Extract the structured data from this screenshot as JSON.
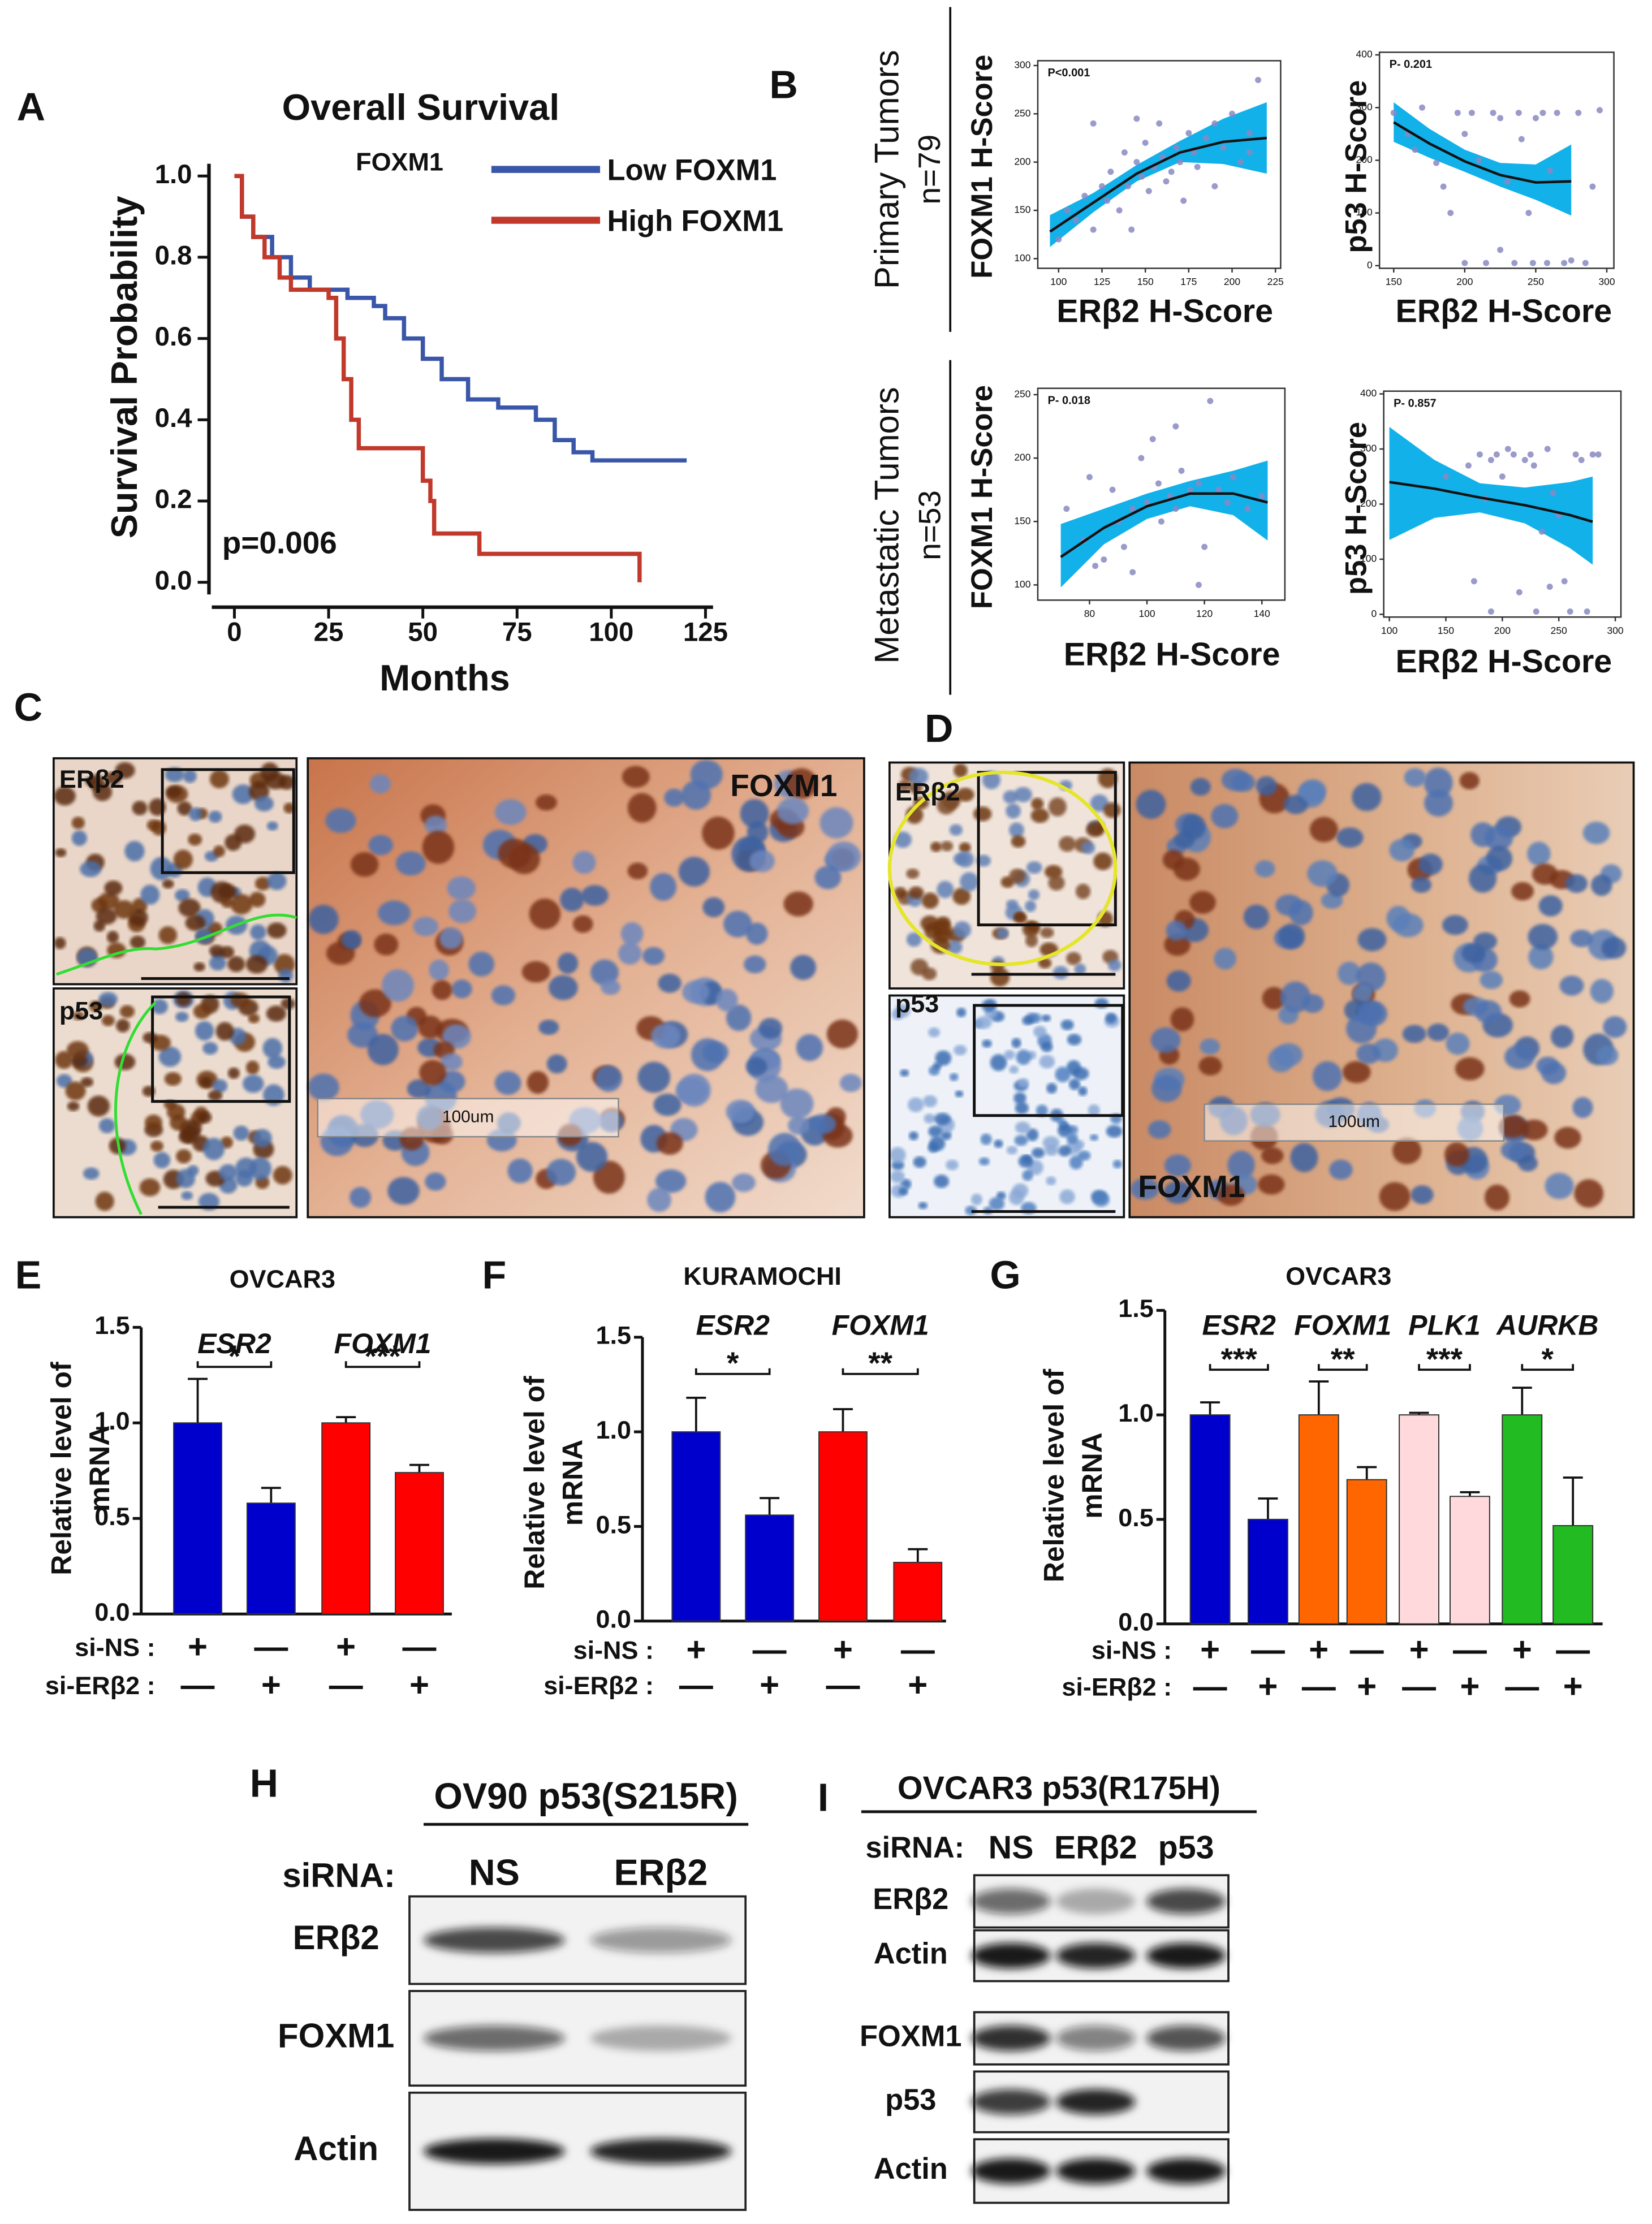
{
  "panel_labels": [
    "A",
    "B",
    "C",
    "D",
    "E",
    "F",
    "G",
    "H",
    "I"
  ],
  "tumor_groups": [
    {
      "name": "Primary Tumors",
      "n": "n=79"
    },
    {
      "name": "Metastatic Tumors",
      "n": "n=53"
    }
  ],
  "chart_data": [
    {
      "type": "line",
      "step": true,
      "title": "Overall Survival",
      "subtitle": "FOXM1",
      "x_label": "Months",
      "y_label": "Survival Probability",
      "annotation": "p=0.006",
      "xlim": [
        -6,
        127
      ],
      "ylim": [
        -0.03,
        1.03
      ],
      "xticks": [
        0,
        25,
        50,
        75,
        100,
        125
      ],
      "yticks": [
        {
          "value": 0,
          "label": "0.0"
        },
        0.2,
        0.4,
        0.6,
        0.8,
        {
          "value": 1,
          "label": "1.0"
        }
      ],
      "series": [
        {
          "name": "Low FOXM1",
          "color": "#3a56a8",
          "x": [
            0,
            2,
            5,
            10,
            15,
            20,
            30,
            37,
            40,
            45,
            50,
            55,
            62,
            70,
            80,
            85,
            90,
            95,
            120
          ],
          "values": [
            1.0,
            0.9,
            0.85,
            0.8,
            0.75,
            0.72,
            0.7,
            0.68,
            0.65,
            0.6,
            0.55,
            0.5,
            0.45,
            0.43,
            0.4,
            0.35,
            0.32,
            0.3,
            0.3
          ]
        },
        {
          "name": "High FOXM1",
          "color": "#c0392b",
          "x": [
            0,
            2,
            5,
            8,
            12,
            15,
            25,
            27,
            29,
            31,
            33,
            50,
            52,
            53,
            65,
            107,
            107.5
          ],
          "values": [
            1.0,
            0.9,
            0.85,
            0.8,
            0.75,
            0.72,
            0.7,
            0.6,
            0.5,
            0.4,
            0.33,
            0.25,
            0.2,
            0.12,
            0.07,
            0.07,
            0.0
          ]
        }
      ]
    },
    {
      "type": "scatter",
      "annotation": "P<0.001",
      "x_label": "ERβ2 H-Score",
      "y_label": "FOXM1 H-Score",
      "xlim": [
        88,
        228
      ],
      "ylim": [
        90,
        305
      ],
      "xticks": [
        100,
        125,
        150,
        175,
        200,
        225
      ],
      "yticks": [
        100,
        150,
        200,
        250,
        300
      ],
      "points": {
        "color": "#8a8ac2",
        "x": [
          100,
          105,
          110,
          115,
          120,
          125,
          128,
          130,
          135,
          138,
          140,
          142,
          145,
          148,
          150,
          152,
          155,
          158,
          160,
          162,
          165,
          168,
          170,
          172,
          175,
          178,
          180,
          185,
          190,
          195,
          200,
          205,
          210,
          215,
          120,
          145,
          190,
          210
        ],
        "values": [
          120,
          150,
          140,
          165,
          130,
          175,
          160,
          190,
          150,
          210,
          175,
          130,
          200,
          185,
          220,
          170,
          195,
          240,
          205,
          180,
          190,
          215,
          200,
          160,
          230,
          210,
          195,
          225,
          240,
          215,
          250,
          200,
          230,
          285,
          240,
          245,
          175,
          210
        ]
      },
      "fit": {
        "color": "#111111",
        "band_color": "#12b1ea",
        "x": [
          95,
          120,
          145,
          170,
          195,
          220
        ],
        "values": [
          128,
          158,
          188,
          210,
          221,
          225
        ],
        "lower": [
          112,
          148,
          180,
          200,
          198,
          188
        ],
        "upper": [
          145,
          168,
          197,
          222,
          245,
          262
        ]
      }
    },
    {
      "type": "scatter",
      "annotation": "P- 0.201",
      "x_label": "ERβ2 H-Score",
      "y_label": "p53 H-Score",
      "xlim": [
        140,
        305
      ],
      "ylim": [
        -5,
        405
      ],
      "xticks": [
        150,
        200,
        250,
        300
      ],
      "yticks": [
        0,
        100,
        200,
        300,
        400
      ],
      "points": {
        "color": "#8a8ac2",
        "x": [
          150,
          160,
          165,
          170,
          180,
          185,
          190,
          195,
          200,
          205,
          210,
          215,
          220,
          225,
          230,
          235,
          238,
          240,
          245,
          248,
          250,
          255,
          258,
          260,
          265,
          270,
          275,
          280,
          285,
          290,
          295,
          200,
          225
        ],
        "values": [
          290,
          250,
          220,
          300,
          195,
          150,
          100,
          290,
          250,
          290,
          200,
          5,
          290,
          280,
          160,
          5,
          290,
          240,
          100,
          5,
          280,
          290,
          5,
          180,
          290,
          5,
          10,
          290,
          5,
          150,
          295,
          5,
          30
        ]
      },
      "fit": {
        "color": "#111111",
        "band_color": "#12b1ea",
        "x": [
          150,
          175,
          200,
          225,
          250,
          275
        ],
        "values": [
          272,
          232,
          198,
          172,
          158,
          160
        ],
        "lower": [
          235,
          205,
          178,
          150,
          125,
          95
        ],
        "upper": [
          310,
          260,
          220,
          195,
          192,
          230
        ]
      }
    },
    {
      "type": "scatter",
      "annotation": "P- 0.018",
      "x_label": "ERβ2 H-Score",
      "y_label": "FOXM1 H-Score",
      "xlim": [
        62,
        148
      ],
      "ylim": [
        88,
        255
      ],
      "xticks": [
        80,
        100,
        120,
        140
      ],
      "yticks": [
        100,
        150,
        200,
        250
      ],
      "points": {
        "color": "#8a8ac2",
        "x": [
          72,
          78,
          80,
          82,
          85,
          88,
          90,
          92,
          95,
          98,
          100,
          102,
          104,
          105,
          108,
          110,
          112,
          115,
          118,
          120,
          122,
          125,
          128,
          130,
          135,
          140,
          95,
          110,
          118
        ],
        "values": [
          160,
          135,
          185,
          115,
          120,
          175,
          150,
          130,
          110,
          200,
          165,
          215,
          180,
          150,
          170,
          160,
          190,
          175,
          180,
          130,
          245,
          175,
          165,
          185,
          160,
          170,
          160,
          225,
          100
        ]
      },
      "fit": {
        "color": "#111111",
        "band_color": "#12b1ea",
        "x": [
          70,
          85,
          100,
          115,
          130,
          142
        ],
        "values": [
          122,
          145,
          162,
          172,
          172,
          165
        ],
        "lower": [
          98,
          132,
          152,
          162,
          155,
          135
        ],
        "upper": [
          148,
          160,
          172,
          182,
          190,
          198
        ]
      }
    },
    {
      "type": "scatter",
      "annotation": "P- 0.857",
      "x_label": "ERβ2 H-Score",
      "y_label": "p53 H-Score",
      "xlim": [
        95,
        305
      ],
      "ylim": [
        -5,
        405
      ],
      "xticks": [
        100,
        150,
        200,
        250,
        300
      ],
      "yticks": [
        0,
        100,
        200,
        300,
        400
      ],
      "points": {
        "color": "#8a8ac2",
        "x": [
          150,
          170,
          180,
          185,
          190,
          195,
          200,
          205,
          210,
          215,
          220,
          225,
          228,
          230,
          235,
          240,
          242,
          245,
          250,
          255,
          260,
          265,
          270,
          275,
          280,
          285,
          190,
          175
        ],
        "values": [
          250,
          270,
          290,
          210,
          280,
          290,
          250,
          300,
          290,
          40,
          280,
          290,
          270,
          5,
          150,
          300,
          50,
          220,
          180,
          60,
          5,
          290,
          280,
          5,
          290,
          290,
          5,
          60
        ]
      },
      "fit": {
        "color": "#111111",
        "band_color": "#12b1ea",
        "x": [
          100,
          140,
          180,
          220,
          260,
          280
        ],
        "values": [
          240,
          228,
          212,
          198,
          180,
          168
        ],
        "lower": [
          135,
          175,
          185,
          165,
          120,
          90
        ],
        "upper": [
          340,
          280,
          238,
          230,
          240,
          250
        ]
      }
    },
    {
      "type": "bar",
      "title": "OVCAR3",
      "y_label": [
        "Relative level of",
        "mRNA"
      ],
      "ylim": [
        0,
        1.5
      ],
      "yticks": [
        {
          "value": 0,
          "label": "0.0"
        },
        0.5,
        {
          "value": 1,
          "label": "1.0"
        },
        1.5
      ],
      "categories": [
        null,
        null,
        null,
        null
      ],
      "values": [
        1.0,
        0.58,
        1.0,
        0.74
      ],
      "errors": [
        0.23,
        0.08,
        0.03,
        0.04
      ],
      "colors": [
        "#0000cc",
        "#0000cc",
        "#ff0000",
        "#ff0000"
      ],
      "genes": [
        {
          "name": "ESR2",
          "significance": "*"
        },
        {
          "name": "FOXM1",
          "significance": "***"
        }
      ],
      "conditions": [
        {
          "name": "si-NS :",
          "marks": [
            "+",
            "—",
            "+",
            "—"
          ]
        },
        {
          "name": "si-ERβ2 :",
          "marks": [
            "—",
            "+",
            "—",
            "+"
          ]
        }
      ]
    },
    {
      "type": "bar",
      "title": "KURAMOCHI",
      "y_label": [
        "Relative level of",
        "mRNA"
      ],
      "ylim": [
        0,
        1.5
      ],
      "yticks": [
        {
          "value": 0,
          "label": "0.0"
        },
        0.5,
        {
          "value": 1,
          "label": "1.0"
        },
        1.5
      ],
      "categories": [
        null,
        null,
        null,
        null
      ],
      "values": [
        1.0,
        0.56,
        1.0,
        0.31
      ],
      "errors": [
        0.18,
        0.09,
        0.12,
        0.07
      ],
      "colors": [
        "#0000cc",
        "#0000cc",
        "#ff0000",
        "#ff0000"
      ],
      "genes": [
        {
          "name": "ESR2",
          "significance": "*"
        },
        {
          "name": "FOXM1",
          "significance": "**"
        }
      ],
      "conditions": [
        {
          "name": "si-NS :",
          "marks": [
            "+",
            "—",
            "+",
            "—"
          ]
        },
        {
          "name": "si-ERβ2 :",
          "marks": [
            "—",
            "+",
            "—",
            "+"
          ]
        }
      ]
    },
    {
      "type": "bar",
      "title": "OVCAR3",
      "y_label": [
        "Relative level of",
        "mRNA"
      ],
      "ylim": [
        0,
        1.5
      ],
      "yticks": [
        {
          "value": 0,
          "label": "0.0"
        },
        0.5,
        {
          "value": 1,
          "label": "1.0"
        },
        1.5
      ],
      "categories": [
        null,
        null,
        null,
        null,
        null,
        null,
        null,
        null
      ],
      "values": [
        1.0,
        0.5,
        1.0,
        0.69,
        1.0,
        0.61,
        1.0,
        0.47
      ],
      "errors": [
        0.06,
        0.1,
        0.16,
        0.06,
        0.01,
        0.02,
        0.13,
        0.23
      ],
      "colors": [
        "#0000cc",
        "#0000cc",
        "#ff6600",
        "#ff6600",
        "#ffd9dc",
        "#ffd9dc",
        "#22bb22",
        "#22bb22"
      ],
      "genes": [
        {
          "name": "ESR2",
          "significance": "***"
        },
        {
          "name": "FOXM1",
          "significance": "**"
        },
        {
          "name": "PLK1",
          "significance": "***"
        },
        {
          "name": "AURKB",
          "significance": "*"
        }
      ],
      "conditions": [
        {
          "name": "si-NS :",
          "marks": [
            "+",
            "—",
            "+",
            "—",
            "+",
            "—",
            "+",
            "—"
          ]
        },
        {
          "name": "si-ERβ2 :",
          "marks": [
            "—",
            "+",
            "—",
            "+",
            "—",
            "+",
            "—",
            "+"
          ]
        }
      ]
    }
  ],
  "micrographs": [
    {
      "small_labels": [
        "ERβ2",
        "p53"
      ],
      "large_label": "FOXM1",
      "scale_label": "100um"
    },
    {
      "small_labels": [
        "ERβ2",
        "p53"
      ],
      "large_label": "FOXM1",
      "scale_label": "100um"
    }
  ],
  "blots": [
    {
      "title": "OV90 p53(S215R)",
      "sirna_label": "siRNA:",
      "lanes": [
        "NS",
        "ERβ2"
      ],
      "rows": [
        "ERβ2",
        "FOXM1",
        "Actin"
      ]
    },
    {
      "title": "OVCAR3 p53(R175H)",
      "sirna_label": "siRNA:",
      "lanes": [
        "NS",
        "ERβ2",
        "p53"
      ],
      "rows": [
        "ERβ2",
        "Actin",
        "FOXM1",
        "p53",
        "Actin"
      ]
    }
  ]
}
